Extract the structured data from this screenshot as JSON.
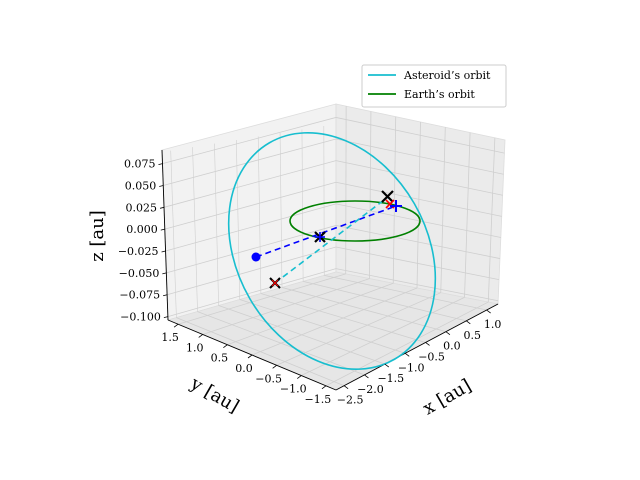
{
  "chart_data": {
    "type": "line3d",
    "x_axis": {
      "label": "x [au]",
      "ticks": [
        "−2.5",
        "−2.0",
        "−1.5",
        "−1.0",
        "−0.5",
        "0.0",
        "0.5",
        "1.0"
      ]
    },
    "y_axis": {
      "label": "y [au]",
      "ticks": [
        "−1.5",
        "−1.0",
        "−0.5",
        "0.0",
        "0.5",
        "1.0",
        "1.5"
      ]
    },
    "z_axis": {
      "label": "z [au]",
      "ticks": [
        "−0.100",
        "−0.075",
        "−0.050",
        "−0.025",
        "0.000",
        "0.025",
        "0.050",
        "0.075"
      ]
    },
    "grid": true,
    "legend": {
      "position": "top-right",
      "entries": [
        {
          "name": "Asteroid’s orbit",
          "color": "#17becf"
        },
        {
          "name": "Earth’s orbit",
          "color": "#008000"
        }
      ]
    },
    "series": [
      {
        "name": "Asteroid’s orbit",
        "color": "#17becf",
        "style": "solid"
      },
      {
        "name": "Earth’s orbit",
        "color": "#008000",
        "style": "solid"
      }
    ],
    "colors": {
      "blue_markers": "#0000ff",
      "connector_cyan": "#17becf",
      "x_markers": "#000000",
      "red_markers": "#ff0000"
    }
  }
}
